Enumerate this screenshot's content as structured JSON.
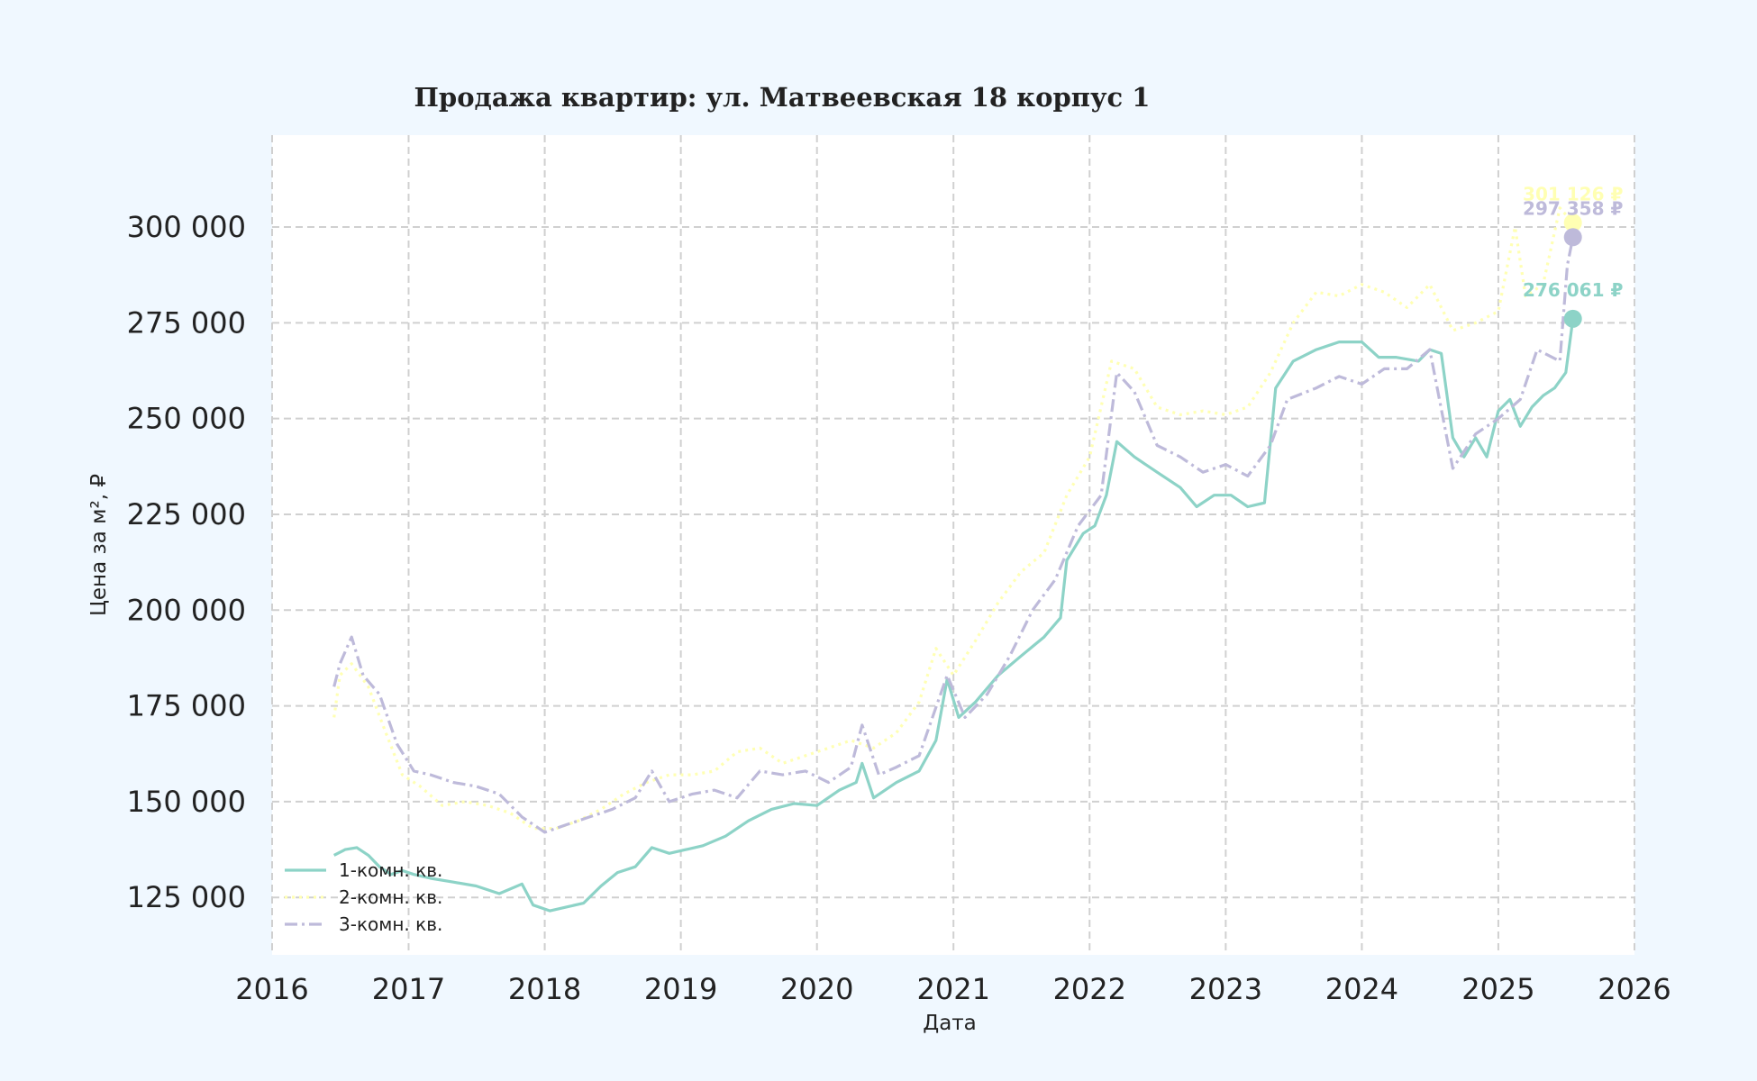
{
  "chart_data": {
    "type": "line",
    "title": "Продажа квартир: ул. Матвеевская 18 корпус 1",
    "xlabel": "Дата",
    "ylabel": "Цена за м², ₽",
    "xlim": [
      "2016-01-01",
      "2026-01-01"
    ],
    "ylim": [
      110000,
      324000
    ],
    "x_ticks": [
      "2016",
      "2017",
      "2018",
      "2019",
      "2020",
      "2021",
      "2022",
      "2023",
      "2024",
      "2025",
      "2026"
    ],
    "y_ticks": [
      "125 000",
      "150 000",
      "175 000",
      "200 000",
      "225 000",
      "250 000",
      "275 000",
      "300 000"
    ],
    "y_tick_values": [
      125000,
      150000,
      175000,
      200000,
      225000,
      250000,
      275000,
      300000
    ],
    "grid": true,
    "legend_position": "lower-left",
    "series": [
      {
        "name": "1-комн. кв.",
        "color": "#8dd3c7",
        "dash": "solid",
        "end_label": "276 061 ₽",
        "end_value": 276061,
        "points": [
          [
            "2016-06-15",
            136000
          ],
          [
            "2016-07-15",
            137500
          ],
          [
            "2016-08-15",
            138000
          ],
          [
            "2016-09-15",
            136000
          ],
          [
            "2016-10-15",
            133000
          ],
          [
            "2016-11-15",
            131000
          ],
          [
            "2016-12-15",
            132000
          ],
          [
            "2017-01-15",
            131000
          ],
          [
            "2017-03-01",
            130000
          ],
          [
            "2017-05-01",
            129000
          ],
          [
            "2017-07-01",
            128000
          ],
          [
            "2017-09-01",
            126000
          ],
          [
            "2017-11-01",
            128500
          ],
          [
            "2017-12-01",
            123000
          ],
          [
            "2018-01-15",
            121500
          ],
          [
            "2018-03-01",
            122500
          ],
          [
            "2018-04-15",
            123500
          ],
          [
            "2018-06-01",
            128000
          ],
          [
            "2018-07-15",
            131500
          ],
          [
            "2018-09-01",
            133000
          ],
          [
            "2018-10-15",
            138000
          ],
          [
            "2018-12-01",
            136500
          ],
          [
            "2019-01-15",
            137500
          ],
          [
            "2019-03-01",
            138500
          ],
          [
            "2019-05-01",
            141000
          ],
          [
            "2019-07-01",
            145000
          ],
          [
            "2019-09-01",
            148000
          ],
          [
            "2019-11-01",
            149500
          ],
          [
            "2020-01-01",
            149000
          ],
          [
            "2020-03-01",
            153000
          ],
          [
            "2020-04-15",
            155000
          ],
          [
            "2020-05-01",
            160000
          ],
          [
            "2020-06-01",
            151000
          ],
          [
            "2020-08-01",
            155000
          ],
          [
            "2020-10-01",
            158000
          ],
          [
            "2020-11-15",
            166000
          ],
          [
            "2020-12-15",
            182000
          ],
          [
            "2021-01-15",
            172000
          ],
          [
            "2021-03-01",
            176000
          ],
          [
            "2021-05-01",
            183000
          ],
          [
            "2021-07-01",
            188000
          ],
          [
            "2021-09-01",
            193000
          ],
          [
            "2021-10-15",
            198000
          ],
          [
            "2021-11-01",
            213000
          ],
          [
            "2021-12-15",
            220000
          ],
          [
            "2022-01-15",
            222000
          ],
          [
            "2022-02-15",
            230000
          ],
          [
            "2022-03-15",
            244000
          ],
          [
            "2022-05-01",
            240000
          ],
          [
            "2022-07-01",
            236000
          ],
          [
            "2022-09-01",
            232000
          ],
          [
            "2022-10-15",
            227000
          ],
          [
            "2022-12-01",
            230000
          ],
          [
            "2023-01-15",
            230000
          ],
          [
            "2023-03-01",
            227000
          ],
          [
            "2023-04-15",
            228000
          ],
          [
            "2023-05-15",
            258000
          ],
          [
            "2023-07-01",
            265000
          ],
          [
            "2023-09-01",
            268000
          ],
          [
            "2023-11-01",
            270000
          ],
          [
            "2024-01-01",
            270000
          ],
          [
            "2024-02-15",
            266000
          ],
          [
            "2024-04-01",
            266000
          ],
          [
            "2024-06-01",
            265000
          ],
          [
            "2024-07-01",
            268000
          ],
          [
            "2024-08-01",
            267000
          ],
          [
            "2024-09-01",
            245000
          ],
          [
            "2024-10-01",
            240000
          ],
          [
            "2024-11-01",
            245000
          ],
          [
            "2024-12-01",
            240000
          ],
          [
            "2025-01-01",
            252000
          ],
          [
            "2025-02-01",
            255000
          ],
          [
            "2025-03-01",
            248000
          ],
          [
            "2025-04-01",
            253000
          ],
          [
            "2025-05-01",
            256000
          ],
          [
            "2025-06-01",
            258000
          ],
          [
            "2025-07-01",
            262000
          ],
          [
            "2025-07-20",
            276061
          ]
        ]
      },
      {
        "name": "2-комн. кв.",
        "color": "#ffffb3",
        "dash": "dashed",
        "end_label": "301 126 ₽",
        "end_value": 301126,
        "points": [
          [
            "2016-06-15",
            172000
          ],
          [
            "2016-07-01",
            183000
          ],
          [
            "2016-08-01",
            186000
          ],
          [
            "2016-09-15",
            180000
          ],
          [
            "2016-11-01",
            168000
          ],
          [
            "2016-12-15",
            157000
          ],
          [
            "2017-02-01",
            154000
          ],
          [
            "2017-04-01",
            149000
          ],
          [
            "2017-06-01",
            150000
          ],
          [
            "2017-08-01",
            149000
          ],
          [
            "2017-10-01",
            147000
          ],
          [
            "2017-12-01",
            143000
          ],
          [
            "2018-02-01",
            143000
          ],
          [
            "2018-04-01",
            145000
          ],
          [
            "2018-06-01",
            148000
          ],
          [
            "2018-08-01",
            152000
          ],
          [
            "2018-10-01",
            155000
          ],
          [
            "2018-12-01",
            157000
          ],
          [
            "2019-02-01",
            157000
          ],
          [
            "2019-04-01",
            158000
          ],
          [
            "2019-06-01",
            163000
          ],
          [
            "2019-08-01",
            164000
          ],
          [
            "2019-10-01",
            160000
          ],
          [
            "2019-12-01",
            162000
          ],
          [
            "2020-02-01",
            164000
          ],
          [
            "2020-04-01",
            166000
          ],
          [
            "2020-06-01",
            164000
          ],
          [
            "2020-08-01",
            168000
          ],
          [
            "2020-10-01",
            176000
          ],
          [
            "2020-11-15",
            190000
          ],
          [
            "2021-01-01",
            183000
          ],
          [
            "2021-03-01",
            192000
          ],
          [
            "2021-05-01",
            202000
          ],
          [
            "2021-07-01",
            210000
          ],
          [
            "2021-09-01",
            215000
          ],
          [
            "2021-11-01",
            230000
          ],
          [
            "2022-01-01",
            240000
          ],
          [
            "2022-03-01",
            265000
          ],
          [
            "2022-05-01",
            263000
          ],
          [
            "2022-07-01",
            253000
          ],
          [
            "2022-09-01",
            251000
          ],
          [
            "2022-11-01",
            252000
          ],
          [
            "2023-01-01",
            251000
          ],
          [
            "2023-03-01",
            253000
          ],
          [
            "2023-05-01",
            262000
          ],
          [
            "2023-07-01",
            275000
          ],
          [
            "2023-09-01",
            283000
          ],
          [
            "2023-11-01",
            282000
          ],
          [
            "2024-01-01",
            285000
          ],
          [
            "2024-03-01",
            283000
          ],
          [
            "2024-05-01",
            279000
          ],
          [
            "2024-07-01",
            285000
          ],
          [
            "2024-09-01",
            273000
          ],
          [
            "2024-11-01",
            275000
          ],
          [
            "2025-01-01",
            278000
          ],
          [
            "2025-02-15",
            300000
          ],
          [
            "2025-03-15",
            282000
          ],
          [
            "2025-05-01",
            285000
          ],
          [
            "2025-06-15",
            305000
          ],
          [
            "2025-07-20",
            301126
          ]
        ]
      },
      {
        "name": "3-комн. кв.",
        "color": "#bebada",
        "dash": "dashdot",
        "end_label": "297 358 ₽",
        "end_value": 297358,
        "points": [
          [
            "2016-06-15",
            180000
          ],
          [
            "2016-07-01",
            186000
          ],
          [
            "2016-08-01",
            193000
          ],
          [
            "2016-09-01",
            183000
          ],
          [
            "2016-10-15",
            178000
          ],
          [
            "2016-12-01",
            165000
          ],
          [
            "2017-01-15",
            158000
          ],
          [
            "2017-03-01",
            157000
          ],
          [
            "2017-05-01",
            155000
          ],
          [
            "2017-07-01",
            154000
          ],
          [
            "2017-09-01",
            152000
          ],
          [
            "2017-11-01",
            146000
          ],
          [
            "2018-01-01",
            142000
          ],
          [
            "2018-03-01",
            144000
          ],
          [
            "2018-05-01",
            146000
          ],
          [
            "2018-07-01",
            148000
          ],
          [
            "2018-09-01",
            151000
          ],
          [
            "2018-10-15",
            158000
          ],
          [
            "2018-12-01",
            150000
          ],
          [
            "2019-02-01",
            152000
          ],
          [
            "2019-04-01",
            153000
          ],
          [
            "2019-06-01",
            151000
          ],
          [
            "2019-08-01",
            158000
          ],
          [
            "2019-10-01",
            157000
          ],
          [
            "2019-12-01",
            158000
          ],
          [
            "2020-02-01",
            155000
          ],
          [
            "2020-04-01",
            159000
          ],
          [
            "2020-05-01",
            170000
          ],
          [
            "2020-06-15",
            157000
          ],
          [
            "2020-08-01",
            159000
          ],
          [
            "2020-10-01",
            162000
          ],
          [
            "2020-12-15",
            183000
          ],
          [
            "2021-02-01",
            172000
          ],
          [
            "2021-04-01",
            178000
          ],
          [
            "2021-06-01",
            188000
          ],
          [
            "2021-08-01",
            200000
          ],
          [
            "2021-10-01",
            208000
          ],
          [
            "2021-12-01",
            222000
          ],
          [
            "2022-02-01",
            230000
          ],
          [
            "2022-03-15",
            262000
          ],
          [
            "2022-05-01",
            257000
          ],
          [
            "2022-07-01",
            243000
          ],
          [
            "2022-09-01",
            240000
          ],
          [
            "2022-11-01",
            236000
          ],
          [
            "2023-01-01",
            238000
          ],
          [
            "2023-03-01",
            235000
          ],
          [
            "2023-05-01",
            243000
          ],
          [
            "2023-06-15",
            255000
          ],
          [
            "2023-09-01",
            258000
          ],
          [
            "2023-11-01",
            261000
          ],
          [
            "2024-01-01",
            259000
          ],
          [
            "2024-03-01",
            263000
          ],
          [
            "2024-05-01",
            263000
          ],
          [
            "2024-07-01",
            268000
          ],
          [
            "2024-09-01",
            237000
          ],
          [
            "2024-11-01",
            246000
          ],
          [
            "2025-01-01",
            250000
          ],
          [
            "2025-03-01",
            255000
          ],
          [
            "2025-04-15",
            268000
          ],
          [
            "2025-06-15",
            265000
          ],
          [
            "2025-07-05",
            290000
          ],
          [
            "2025-07-20",
            297358
          ]
        ]
      }
    ]
  }
}
